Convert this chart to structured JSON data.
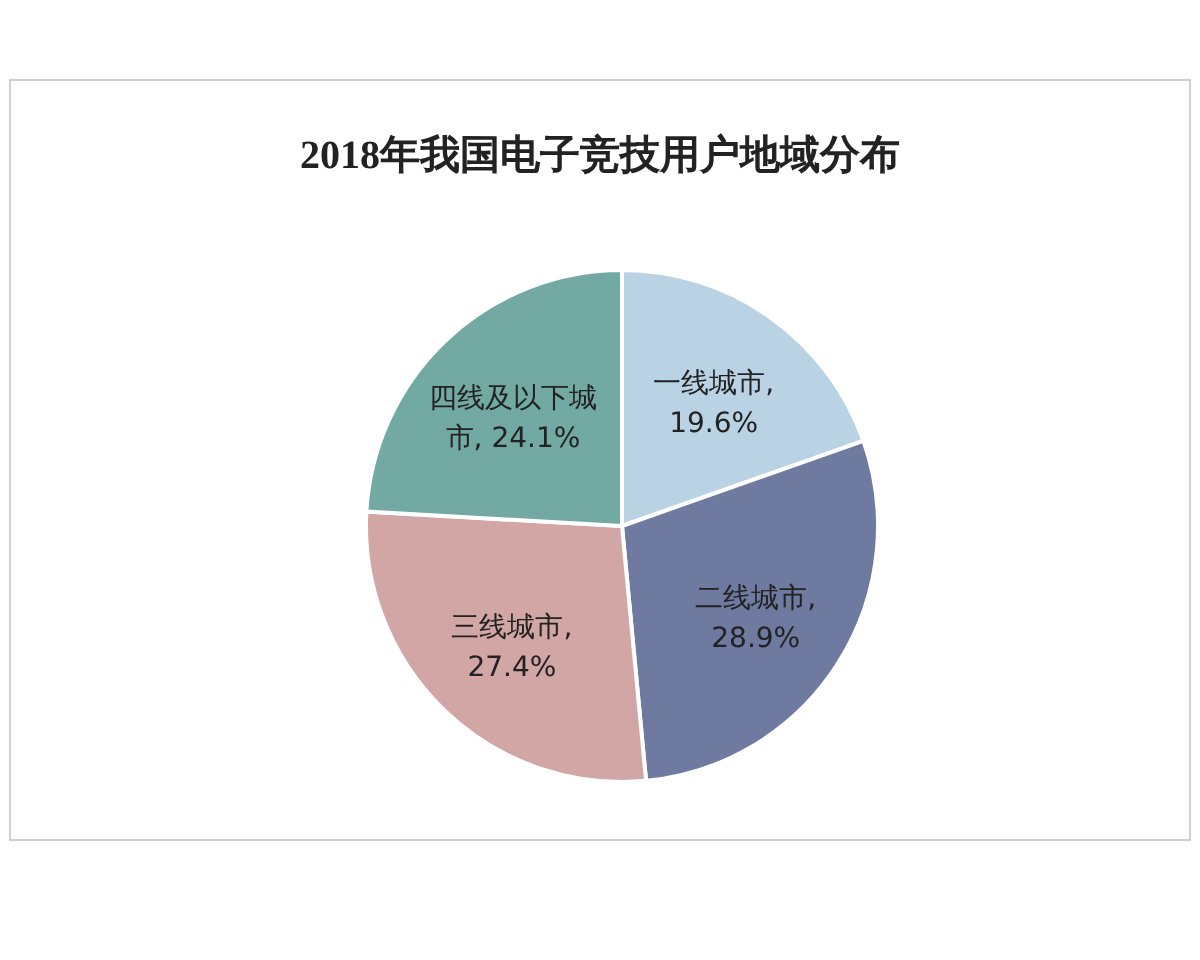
{
  "chart_data": {
    "type": "pie",
    "title": "2018年我国电子竞技用户地域分布",
    "categories": [
      "一线城市",
      "二线城市",
      "三线城市",
      "四线及以下城市"
    ],
    "values": [
      19.6,
      28.9,
      27.4,
      24.1
    ],
    "value_labels": [
      ", 19.6%",
      ", 28.9%",
      ", 27.4%",
      ", 24.1%"
    ],
    "colors": [
      "#b9d3e4",
      "#6e7a9f",
      "#d3a6a6",
      "#72aaa3"
    ]
  }
}
